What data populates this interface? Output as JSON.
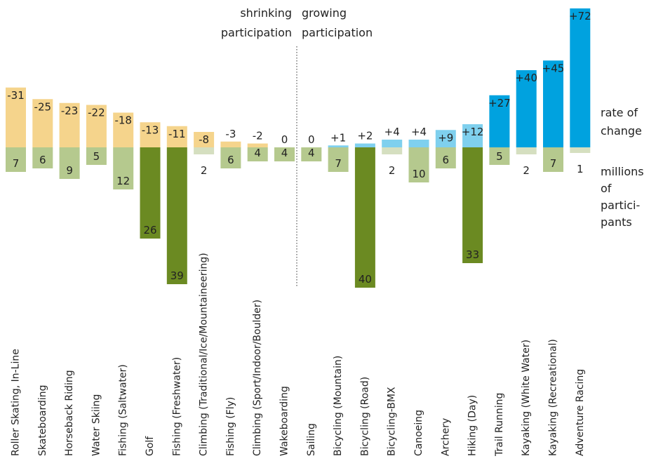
{
  "chart_data": {
    "type": "bar",
    "divider_label_left": [
      "shrinking",
      "participation"
    ],
    "divider_label_right": [
      "growing",
      "participation"
    ],
    "side_label_rate": [
      "rate of",
      "change"
    ],
    "side_label_participants": [
      "millions",
      "of",
      "partici-",
      "pants"
    ],
    "colors": {
      "negative_rate": "#f5d48c",
      "positive_rate_small": "#7fd0ee",
      "positive_rate_large": "#00a2df",
      "participants_light": "#b5c98e",
      "participants_dark": "#6b8a22",
      "participants_faint": "#d5dfc0"
    },
    "categories": [
      "Roller Skating, In-Line",
      "Skateboarding",
      "Horseback Riding",
      "Water Skiing",
      "Fishing (Saltwater)",
      "Golf",
      "Fishing (Freshwater)",
      "Climbing (Traditional/Ice/Mountaineering)",
      "Fishing (Fly)",
      "Climbing (Sport/Indoor/Boulder)",
      "Wakeboarding",
      "Sailing",
      "Bicycling (Mountain)",
      "Bicycling (Road)",
      "Bicycling-BMX",
      "Canoeing",
      "Archery",
      "Hiking (Day)",
      "Trail Running",
      "Kayaking (White Water)",
      "Kayaking (Recreational)",
      "Adventure Racing"
    ],
    "rate_labels": [
      "-31",
      "-25",
      "-23",
      "-22",
      "-18",
      "-13",
      "-11",
      "-8",
      "-3",
      "-2",
      "0",
      "0",
      "+1",
      "+2",
      "+4",
      "+4",
      "+9",
      "+12",
      "+27",
      "+40",
      "+45",
      "+72"
    ],
    "rate_values": [
      -31,
      -25,
      -23,
      -22,
      -18,
      -13,
      -11,
      -8,
      -3,
      -2,
      0,
      0,
      1,
      2,
      4,
      4,
      9,
      12,
      27,
      40,
      45,
      72
    ],
    "participant_labels": [
      "7",
      "6",
      "9",
      "5",
      "12",
      "26",
      "39",
      "2",
      "6",
      "4",
      "4",
      "4",
      "7",
      "40",
      "2",
      "10",
      "6",
      "33",
      "5",
      "2",
      "7",
      "1"
    ],
    "participant_values": [
      7,
      6,
      9,
      5,
      12,
      26,
      39,
      2,
      6,
      4,
      4,
      4,
      7,
      40,
      2,
      10,
      6,
      33,
      5,
      2,
      7,
      1
    ]
  }
}
